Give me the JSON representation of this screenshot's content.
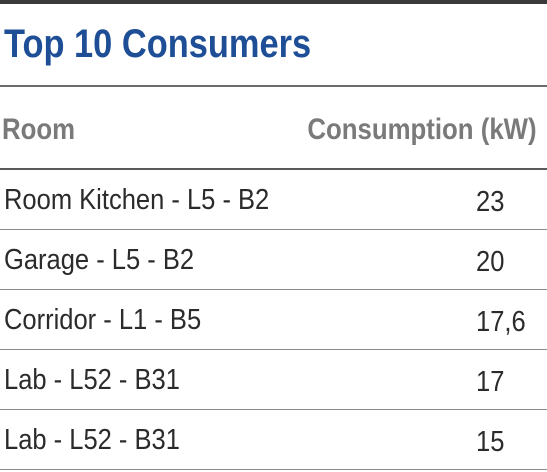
{
  "widget": {
    "title": "Top 10 Consumers",
    "columns": {
      "room": "Room",
      "consumption": "Consumption (kW)"
    },
    "rows": [
      {
        "room": "Room Kitchen - L5 - B2",
        "consumption": "23"
      },
      {
        "room": "Garage - L5 - B2",
        "consumption": "20"
      },
      {
        "room": "Corridor - L1 - B5",
        "consumption": "17,6"
      },
      {
        "room": "Lab - L52 - B31",
        "consumption": "17"
      },
      {
        "room": "Lab - L52 - B31",
        "consumption": "15"
      }
    ]
  },
  "colors": {
    "title": "#1e4e96",
    "header_text": "#7a7a7a",
    "body_text": "#2b2b2b",
    "rule": "#5a5a5a"
  }
}
